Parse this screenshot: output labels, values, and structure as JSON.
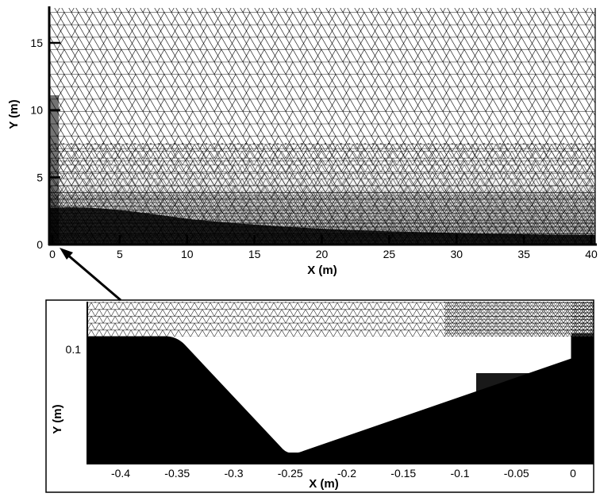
{
  "top_plot": {
    "x_axis": {
      "title": "X (m)",
      "ticks": [
        {
          "value": 0,
          "label": "0"
        },
        {
          "value": 5,
          "label": "5"
        },
        {
          "value": 10,
          "label": "10"
        },
        {
          "value": 15,
          "label": "15"
        },
        {
          "value": 20,
          "label": "20"
        },
        {
          "value": 25,
          "label": "25"
        },
        {
          "value": 30,
          "label": "30"
        },
        {
          "value": 35,
          "label": "35"
        },
        {
          "value": 40,
          "label": "40"
        }
      ]
    },
    "y_axis": {
      "title": "Y (m)",
      "ticks": [
        {
          "value": 0,
          "label": "0"
        },
        {
          "value": 5,
          "label": "5"
        },
        {
          "value": 10,
          "label": "10"
        },
        {
          "value": 15,
          "label": "15"
        }
      ]
    }
  },
  "inset_plot": {
    "x_axis": {
      "title": "X (m)",
      "ticks": [
        {
          "value": -0.4,
          "label": "-0.4"
        },
        {
          "value": -0.35,
          "label": "-0.35"
        },
        {
          "value": -0.3,
          "label": "-0.3"
        },
        {
          "value": -0.25,
          "label": "-0.25"
        },
        {
          "value": -0.2,
          "label": "-0.2"
        },
        {
          "value": -0.15,
          "label": "-0.15"
        },
        {
          "value": -0.1,
          "label": "-0.1"
        },
        {
          "value": -0.05,
          "label": "-0.05"
        },
        {
          "value": 0,
          "label": "0"
        }
      ]
    },
    "y_axis": {
      "title": "Y (m)",
      "ticks": [
        {
          "value": 0.1,
          "label": "0.1"
        }
      ]
    }
  },
  "colors": {
    "ink": "#000000",
    "background": "#ffffff"
  }
}
